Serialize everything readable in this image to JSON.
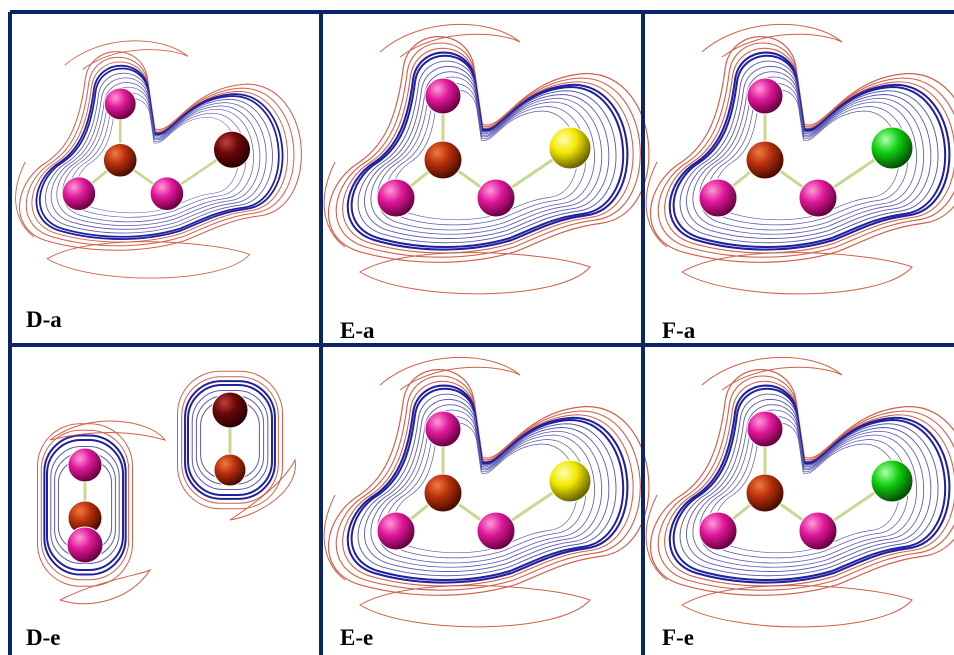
{
  "panels": [
    {
      "label": "D-a"
    },
    {
      "label": "E-a"
    },
    {
      "label": "F-a"
    },
    {
      "label": "D-e"
    },
    {
      "label": "E-e"
    },
    {
      "label": "F-e"
    }
  ]
}
